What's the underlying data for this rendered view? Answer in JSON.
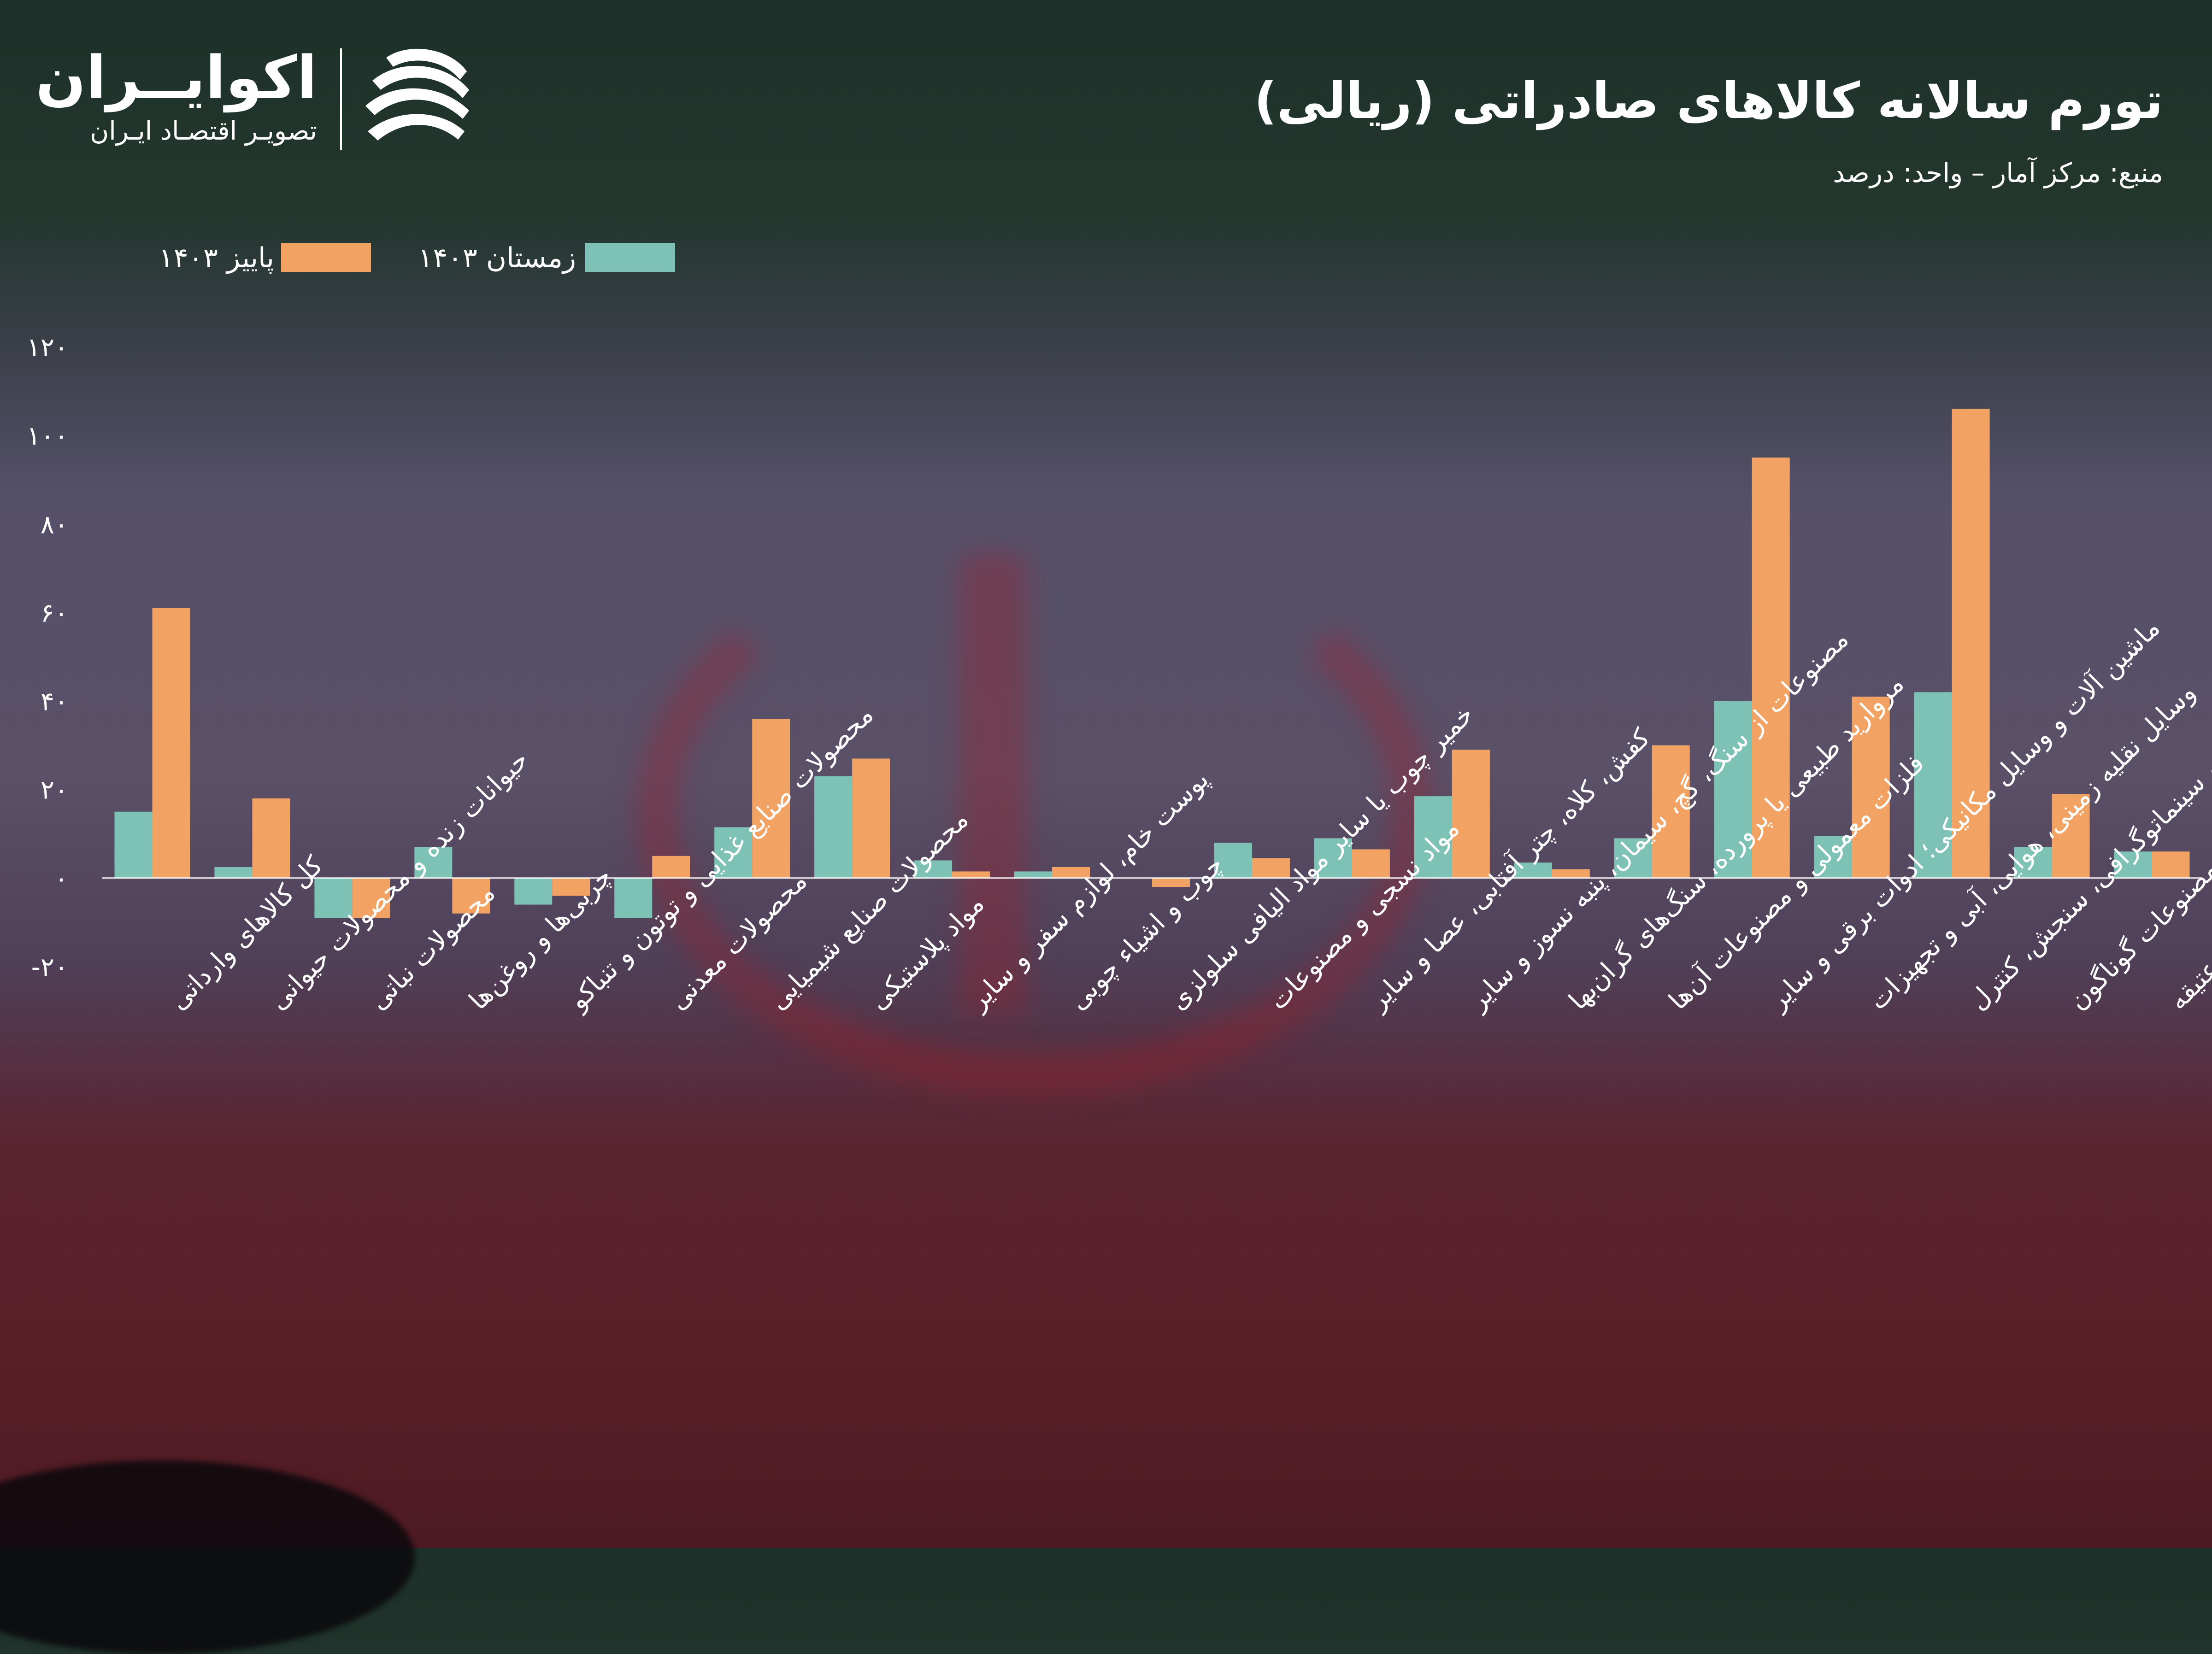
{
  "branding": {
    "name": "اکوایــران",
    "tagline": "تصویـر اقتصـاد ایـران"
  },
  "header": {
    "title": "تورم سالانه کالاهای صادراتی (ریالی)",
    "subtitle": "منبع: مرکز آمار – واحد: درصد"
  },
  "colors": {
    "winter": "#7ec2b6",
    "autumn": "#f2a364",
    "axis": "#ffffff"
  },
  "legend": {
    "winter_label": "زمستان ۱۴۰۳",
    "autumn_label": "پاییز ۱۴۰۳"
  },
  "chart_data": {
    "type": "bar",
    "title": "تورم سالانه کالاهای صادراتی (ریالی)",
    "ylabel": "",
    "xlabel": "",
    "ylim": [
      -20,
      120
    ],
    "yticks": [
      120,
      100,
      80,
      60,
      40,
      20,
      0,
      -20
    ],
    "ytick_labels": [
      "۱۲۰",
      "۱۰۰",
      "۸۰",
      "۶۰",
      "۴۰",
      "۲۰",
      "۰",
      "-۲۰"
    ],
    "legend_position": "top-left",
    "grid": false,
    "categories": [
      "کل کالاهای وارداتی",
      "حیوانات زنده و محصولات حیوانی",
      "محصولات نباتی",
      "چربی‌ها و روغن‌ها",
      "محصولات صنایع غذایی و توتون و تنباکو",
      "محصولات معدنی",
      "محصولات صنایع شیمیایی",
      "مواد پلاستیکی",
      "پوست خام، لوازم سفر و سایر",
      "چوب و اشیاء چوبی",
      "خمیر چوب یا سایر مواد الیافی سلولزی",
      "مواد نسجی و مصنوعات",
      "کفش، کلاه، چتر آفتابی، عصا و سایر",
      "مصنوعات از سنگ، گچ، سیمان، پنبه نسوز و سایر",
      "مروارید طبیعی یا پرورده، سنگ‌های گران‌بها",
      "فلزات معمولی و مصنوعات آن‌ها",
      "ماشین آلات و وسایل مکانیکی؛ ادوات برقی و سایر",
      "وسایل نقلیه زمینی، هوایی، آبی و تجهیزات",
      "آلات و دستگاه‌های اپتیک، عکاسی، سینماتوگرافی، سنجش، کنترل",
      "کالاها و مصنوعات گوناگون",
      "اشیاء هنری، اشیاء کلکسیون یا عتیقه"
    ],
    "series": [
      {
        "name": "زمستان ۱۴۰۳",
        "values": [
          15,
          2.5,
          -9,
          7,
          -6,
          -9,
          11.5,
          23,
          4,
          1.5,
          0,
          8,
          9,
          18.5,
          3.5,
          9,
          40,
          9.5,
          42,
          7,
          6
        ]
      },
      {
        "name": "پاییز ۱۴۰۳",
        "values": [
          61,
          18,
          -9,
          -8,
          -4,
          5,
          36,
          27,
          1.5,
          2.5,
          -2,
          4.5,
          6.5,
          29,
          2,
          30,
          95,
          41,
          106,
          19,
          6
        ]
      }
    ]
  }
}
